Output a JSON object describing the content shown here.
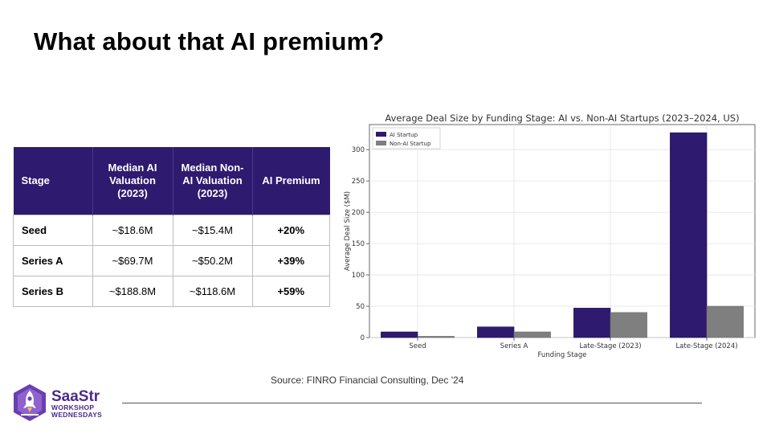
{
  "slide": {
    "title": "What about that AI premium?"
  },
  "table": {
    "headers": [
      "Stage",
      "Median AI Valuation (2023)",
      "Median Non-AI Valuation (2023)",
      "AI Premium"
    ],
    "rows": [
      [
        "Seed",
        "~$18.6M",
        "~$15.4M",
        "+20%"
      ],
      [
        "Series A",
        "~$69.7M",
        "~$50.2M",
        "+39%"
      ],
      [
        "Series B",
        "~$188.8M",
        "~$118.6M",
        "+59%"
      ]
    ]
  },
  "chart_data": {
    "type": "bar",
    "title": "Average Deal Size by Funding Stage: AI vs. Non-AI Startups (2023–2024, US)",
    "xlabel": "Funding Stage",
    "ylabel": "Average Deal Size ($M)",
    "categories": [
      "Seed",
      "Series A",
      "Late-Stage (2023)",
      "Late-Stage (2024)"
    ],
    "series": [
      {
        "name": "AI Startup",
        "color": "#2e1a6f",
        "values": [
          9,
          17,
          47,
          327
        ]
      },
      {
        "name": "Non-AI Startup",
        "color": "#7f7f7f",
        "values": [
          2,
          9,
          40,
          50
        ]
      }
    ],
    "ylim": [
      0,
      340
    ],
    "yticks": [
      0,
      50,
      100,
      150,
      200,
      250,
      300
    ],
    "grid": true,
    "legend": "top-left"
  },
  "source": "Source: FINRO Financial Consulting, Dec '24",
  "logo": {
    "name": "SaaStr",
    "line1": "WORKSHOP",
    "line2": "WEDNESDAYS"
  }
}
